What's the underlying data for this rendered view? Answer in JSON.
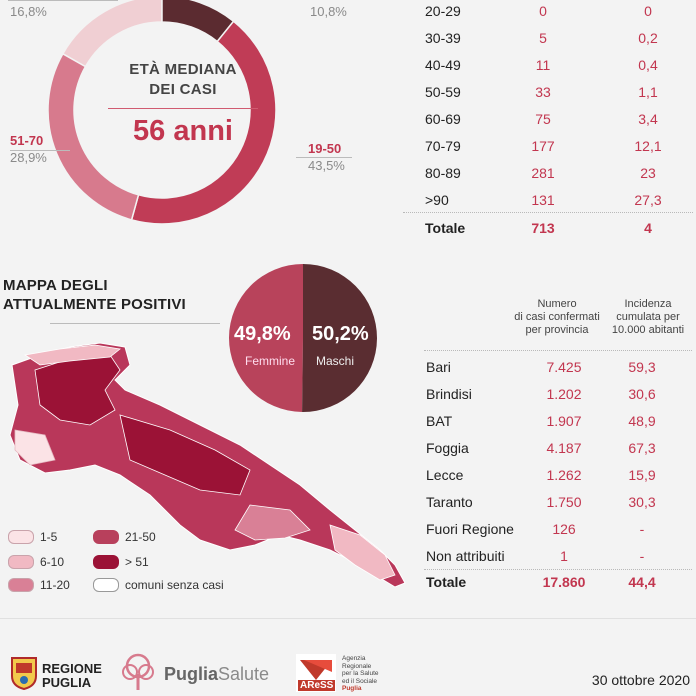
{
  "donut": {
    "center_title_line1": "ETÀ MEDIANA",
    "center_title_line2": "DEI CASI",
    "center_value": "56 anni",
    "labels": [
      {
        "range": "",
        "pct": "16,8%"
      },
      {
        "range": "",
        "pct": "10,8%"
      },
      {
        "range": "51-70",
        "pct": "28,9%"
      },
      {
        "range": "19-50",
        "pct": "43,5%"
      }
    ]
  },
  "age_table": {
    "rows": [
      {
        "age": "20-29",
        "cases": "0",
        "lethality": "0"
      },
      {
        "age": "30-39",
        "cases": "5",
        "lethality": "0,2"
      },
      {
        "age": "40-49",
        "cases": "11",
        "lethality": "0,4"
      },
      {
        "age": "50-59",
        "cases": "33",
        "lethality": "1,1"
      },
      {
        "age": "60-69",
        "cases": "75",
        "lethality": "3,4"
      },
      {
        "age": "70-79",
        "cases": "177",
        "lethality": "12,1"
      },
      {
        "age": "80-89",
        "cases": "281",
        "lethality": "23"
      },
      {
        "age": ">90",
        "cases": "131",
        "lethality": "27,3"
      }
    ],
    "total": {
      "label": "Totale",
      "cases": "713",
      "lethality": "4"
    }
  },
  "map": {
    "title_line1": "MAPPA DEGLI",
    "title_line2": "ATTUALMENTE POSITIVI",
    "legend": [
      {
        "label": "1-5",
        "color": "#fbe3e6"
      },
      {
        "label": "6-10",
        "color": "#f1b9c3"
      },
      {
        "label": "11-20",
        "color": "#d98096"
      },
      {
        "label": "21-50",
        "color": "#b8405c"
      },
      {
        "label": "> 51",
        "color": "#9b1236"
      },
      {
        "label": "comuni senza casi",
        "color": "#ffffff"
      }
    ]
  },
  "gender": {
    "female_pct": "49,8%",
    "female_label": "Femmine",
    "male_pct": "50,2%",
    "male_label": "Maschi",
    "female_color": "#b8435b",
    "male_color": "#5a2d31"
  },
  "province_table": {
    "header_cases_line1": "Numero",
    "header_cases_line2": "di casi confermati",
    "header_cases_line3": "per provincia",
    "header_inc_line1": "Incidenza",
    "header_inc_line2": "cumulata per",
    "header_inc_line3": "10.000 abitanti",
    "rows": [
      {
        "name": "Bari",
        "cases": "7.425",
        "incidence": "59,3"
      },
      {
        "name": "Brindisi",
        "cases": "1.202",
        "incidence": "30,6"
      },
      {
        "name": "BAT",
        "cases": "1.907",
        "incidence": "48,9"
      },
      {
        "name": "Foggia",
        "cases": "4.187",
        "incidence": "67,3"
      },
      {
        "name": "Lecce",
        "cases": "1.262",
        "incidence": "15,9"
      },
      {
        "name": "Taranto",
        "cases": "1.750",
        "incidence": "30,3"
      },
      {
        "name": "Fuori Regione",
        "cases": "126",
        "incidence": "-"
      },
      {
        "name": "Non attribuiti",
        "cases": "1",
        "incidence": "-"
      }
    ],
    "total": {
      "label": "Totale",
      "cases": "17.860",
      "incidence": "44,4"
    }
  },
  "footer": {
    "logo1_line1": "REGIONE",
    "logo1_line2": "PUGLIA",
    "logo2_part1": "Puglia",
    "logo2_part2": "Salute",
    "logo3_acronym": "AReSS",
    "logo3_line1": "Agenzia",
    "logo3_line2": "Regionale",
    "logo3_line3": "per la Salute",
    "logo3_line4": "ed il Sociale",
    "logo3_line5": "Puglia",
    "date": "30 ottobre 2020"
  },
  "chart_data": [
    {
      "type": "pie",
      "title": "ETÀ MEDIANA DEI CASI",
      "categories": [
        "",
        "",
        "51-70",
        "19-50"
      ],
      "values": [
        16.8,
        10.8,
        28.9,
        43.5
      ],
      "colors": [
        "#f0cfd3",
        "#5b2b30",
        "#d77a8d",
        "#c03c56"
      ]
    },
    {
      "type": "pie",
      "categories": [
        "Femmine",
        "Maschi"
      ],
      "values": [
        49.8,
        50.2
      ],
      "colors": [
        "#b8435b",
        "#5a2d31"
      ]
    }
  ]
}
